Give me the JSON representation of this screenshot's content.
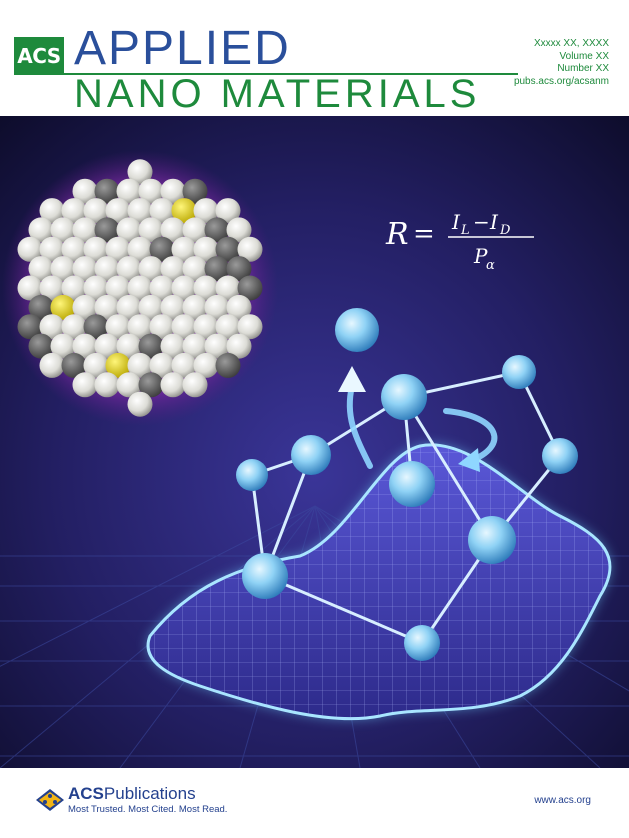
{
  "masthead": {
    "publisher_badge": "ACS",
    "title_line1": "APPLIED",
    "title_line2": "NANO MATERIALS",
    "issue_date": "Xxxxx XX, XXXX",
    "volume": "Volume XX",
    "number": "Number XX",
    "journal_url": "pubs.acs.org/acsanm"
  },
  "artwork": {
    "equation": {
      "lhs": "R",
      "equals": "=",
      "numerator_a": "I",
      "numerator_a_sub": "L",
      "minus": "−",
      "numerator_b": "I",
      "numerator_b_sub": "D",
      "denominator": "P",
      "denominator_sub": "α"
    }
  },
  "footer": {
    "publisher_name_bold": "ACS",
    "publisher_name_rest": "Publications",
    "tagline": "Most Trusted. Most Cited. Most Read.",
    "website": "www.acs.org"
  },
  "colors": {
    "acs_green": "#1e8a3c",
    "title_blue": "#2a4f9b",
    "footer_blue": "#24418e",
    "art_background": "#16143d",
    "node_cyan": "#7cc8f0",
    "purple_glow": "#7a2a9a"
  }
}
